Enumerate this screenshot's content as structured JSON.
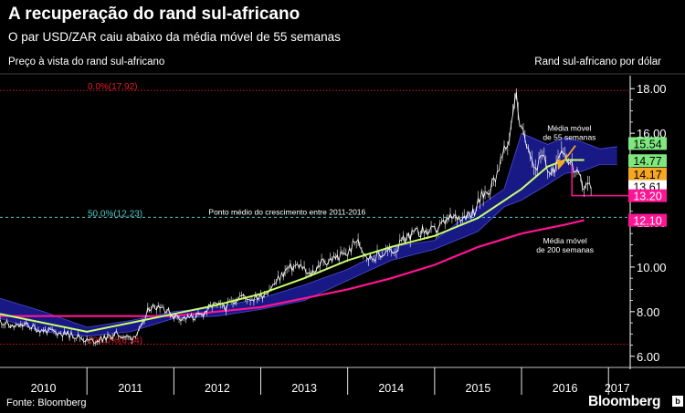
{
  "header": {
    "title": "A recuperação do rand sul-africano",
    "subtitle": "O par USD/ZAR caiu abaixo da média móvel de 55 semanas",
    "left_axis_label": "Preço à vista do rand sul-africano",
    "right_axis_label": "Rand sul-africano por dólar"
  },
  "footer": {
    "source": "Fonte: Bloomberg",
    "brand": "Bloomberg",
    "brand_badge": "b"
  },
  "colors": {
    "background": "#000000",
    "price": "#ffffff",
    "ma55": "#c8ff6e",
    "ma200": "#ff1493",
    "cloud": "#1a1a8c",
    "fib_line": "#e8192c",
    "midpoint_line": "#4ec9c9",
    "support_line": "#ff1493",
    "arrow": "#f5a623"
  },
  "chart_data": {
    "type": "line",
    "title": "A recuperação do rand sul-africano",
    "xlabel": "",
    "ylabel": "Rand sul-africano por dólar",
    "xlim": [
      2010.0,
      2017.25
    ],
    "ylim": [
      5.5,
      18.5
    ],
    "x_ticks": [
      {
        "label": "2010",
        "x": 2010.5
      },
      {
        "label": "2011",
        "x": 2011.5
      },
      {
        "label": "2012",
        "x": 2012.5
      },
      {
        "label": "2013",
        "x": 2013.5
      },
      {
        "label": "2014",
        "x": 2014.5
      },
      {
        "label": "2015",
        "x": 2015.5
      },
      {
        "label": "2016",
        "x": 2016.5
      },
      {
        "label": "2017",
        "x": 2017.1
      }
    ],
    "x_dividers": [
      2011.0,
      2012.0,
      2013.0,
      2014.0,
      2015.0,
      2016.0,
      2017.0
    ],
    "y_ticks": [
      6.0,
      8.0,
      10.0,
      12.0,
      14.0,
      16.0,
      18.0
    ],
    "y_tick_labels": [
      "6.00",
      "8.00",
      "10.00",
      "12.00",
      "14.00",
      "16.00",
      "18.00"
    ],
    "series": [
      {
        "name": "Preço à vista USD/ZAR",
        "x": [
          2010.0,
          2010.15,
          2010.3,
          2010.45,
          2010.6,
          2010.75,
          2010.9,
          2011.0,
          2011.1,
          2011.2,
          2011.35,
          2011.5,
          2011.62,
          2011.72,
          2011.85,
          2012.0,
          2012.15,
          2012.3,
          2012.45,
          2012.6,
          2012.75,
          2012.9,
          2013.0,
          2013.15,
          2013.3,
          2013.45,
          2013.55,
          2013.7,
          2013.85,
          2014.0,
          2014.1,
          2014.25,
          2014.4,
          2014.55,
          2014.7,
          2014.85,
          2015.0,
          2015.15,
          2015.3,
          2015.45,
          2015.55,
          2015.65,
          2015.75,
          2015.85,
          2015.93,
          2016.0,
          2016.08,
          2016.15,
          2016.25,
          2016.35,
          2016.45,
          2016.55,
          2016.65,
          2016.72,
          2016.8
        ],
        "values": [
          7.6,
          7.3,
          7.4,
          7.2,
          7.1,
          7.0,
          6.9,
          6.7,
          6.7,
          6.8,
          7.0,
          6.8,
          7.2,
          8.2,
          8.3,
          7.8,
          7.7,
          7.8,
          8.3,
          8.2,
          8.7,
          8.6,
          8.7,
          9.2,
          9.9,
          10.1,
          9.6,
          10.2,
          10.4,
          10.6,
          11.2,
          10.4,
          10.6,
          10.8,
          11.4,
          11.6,
          11.6,
          12.1,
          12.3,
          12.5,
          13.2,
          13.6,
          14.6,
          15.6,
          17.9,
          16.0,
          15.6,
          14.4,
          14.9,
          14.0,
          15.5,
          14.8,
          14.0,
          13.6,
          13.7
        ]
      },
      {
        "name": "Média móvel de 55 semanas",
        "x": [
          2010.0,
          2010.5,
          2011.0,
          2011.5,
          2012.0,
          2012.5,
          2013.0,
          2013.5,
          2014.0,
          2014.5,
          2015.0,
          2015.5,
          2016.0,
          2016.3,
          2016.5,
          2016.72
        ],
        "values": [
          7.9,
          7.5,
          7.1,
          7.5,
          7.9,
          8.3,
          8.8,
          9.5,
          10.3,
          10.9,
          11.4,
          12.2,
          13.5,
          14.5,
          14.8,
          14.8
        ]
      },
      {
        "name": "Média móvel de 200 semanas",
        "x": [
          2010.0,
          2011.0,
          2012.0,
          2012.5,
          2013.0,
          2013.5,
          2014.0,
          2014.5,
          2015.0,
          2015.5,
          2016.0,
          2016.5,
          2016.72
        ],
        "values": [
          7.8,
          7.8,
          7.8,
          8.0,
          8.2,
          8.6,
          9.0,
          9.5,
          10.1,
          10.9,
          11.5,
          11.9,
          12.1
        ]
      },
      {
        "name": "Nuvem (faixa)",
        "x": [
          2010.0,
          2010.5,
          2011.0,
          2011.5,
          2012.0,
          2012.5,
          2013.0,
          2013.5,
          2014.0,
          2014.5,
          2015.0,
          2015.5,
          2015.8,
          2016.0,
          2016.3,
          2016.5,
          2016.7,
          2016.9,
          2017.1
        ],
        "upper": [
          8.6,
          8.0,
          7.3,
          7.6,
          8.0,
          8.2,
          8.6,
          9.2,
          9.9,
          10.9,
          11.2,
          12.7,
          13.5,
          16.0,
          15.5,
          15.8,
          15.6,
          15.3,
          15.4
        ],
        "lower": [
          7.7,
          7.1,
          6.9,
          7.1,
          7.7,
          7.8,
          8.1,
          8.5,
          9.4,
          10.3,
          10.8,
          11.6,
          12.7,
          13.0,
          13.7,
          14.2,
          14.3,
          14.6,
          14.6
        ]
      }
    ],
    "reference_lines": [
      {
        "label": "0.0%(17.92)",
        "y": 17.92,
        "style": "dotted"
      },
      {
        "label": "50.0%(12.23)",
        "y": 12.23,
        "style": "dashed"
      },
      {
        "label": "100.0%(6.54)",
        "y": 6.54,
        "style": "dotted"
      }
    ],
    "annotations": [
      {
        "text": "Ponto médio do crescimento entre 2011-2016",
        "x": 2012.4,
        "y": 12.23
      },
      {
        "text_lines": [
          "Média móvel",
          "de 55 semanas"
        ],
        "x": 2016.55,
        "y": 16.1
      },
      {
        "text_lines": [
          "Média móvel",
          "de 200 semanas"
        ],
        "x": 2016.5,
        "y": 11.05
      }
    ],
    "value_tags": [
      {
        "value": "15.54",
        "y": 15.54,
        "color": "#7ee87e",
        "text_color": "#000000"
      },
      {
        "value": "14.77",
        "y": 14.77,
        "color": "#7ee87e",
        "text_color": "#000000"
      },
      {
        "value": "14.17",
        "y": 14.17,
        "color": "#f5a623",
        "text_color": "#000000"
      },
      {
        "value": "13.61",
        "y": 13.61,
        "color": "#ffffff",
        "text_color": "#000000"
      },
      {
        "value": "13.20",
        "y": 13.2,
        "color": "#ff1493",
        "text_color": "#ffffff"
      },
      {
        "value": "12.10",
        "y": 12.1,
        "color": "#ff1493",
        "text_color": "#ffffff"
      }
    ],
    "grid": false,
    "legend": "none"
  }
}
